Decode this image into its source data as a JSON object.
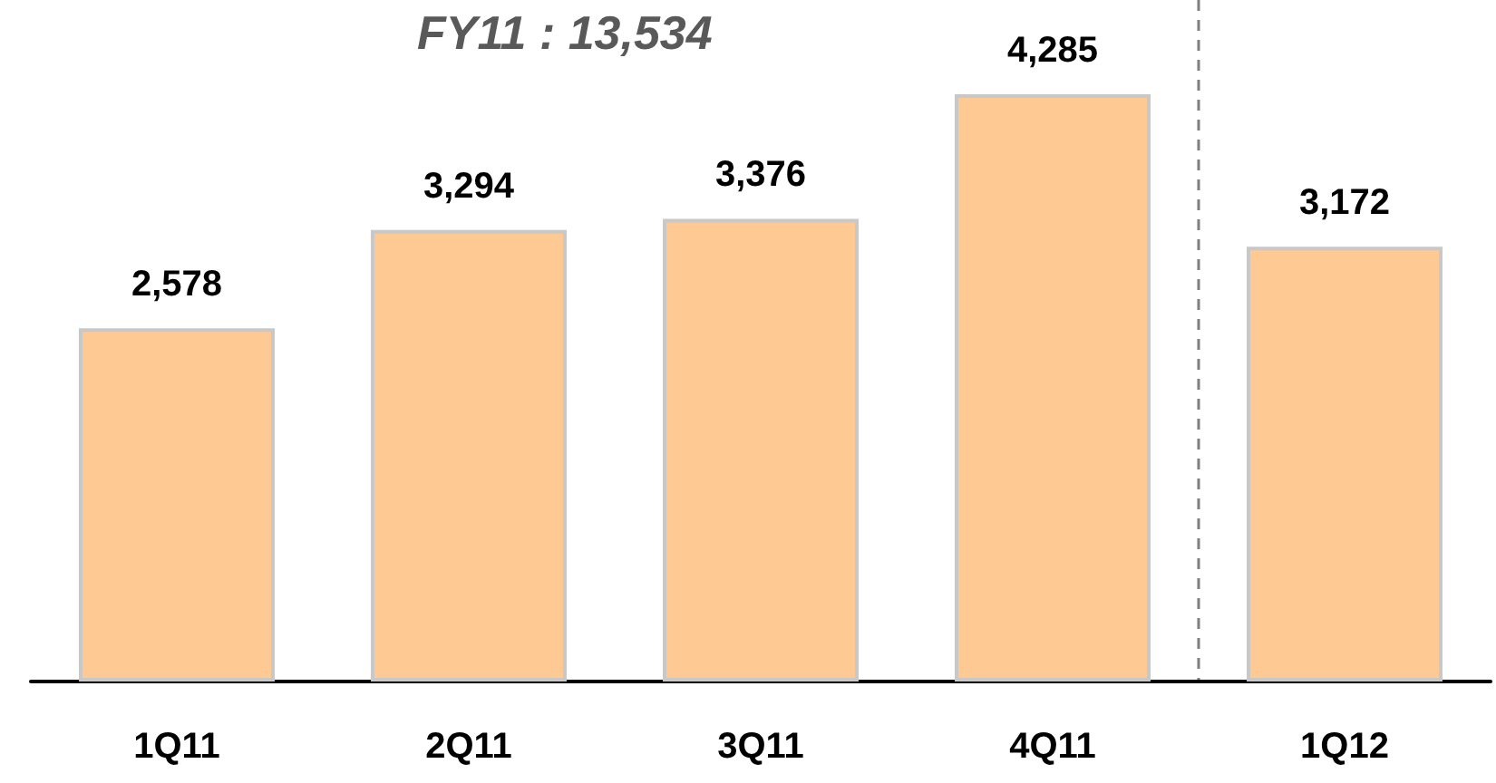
{
  "chart_data": {
    "type": "bar",
    "title": "FY11 : 13,534",
    "categories": [
      "1Q11",
      "2Q11",
      "3Q11",
      "4Q11",
      "1Q12"
    ],
    "values": [
      2578,
      3294,
      3376,
      4285,
      3172
    ],
    "value_labels": [
      "2,578",
      "3,294",
      "3,376",
      "4,285",
      "3,172"
    ],
    "color": "#ffc994"
  }
}
